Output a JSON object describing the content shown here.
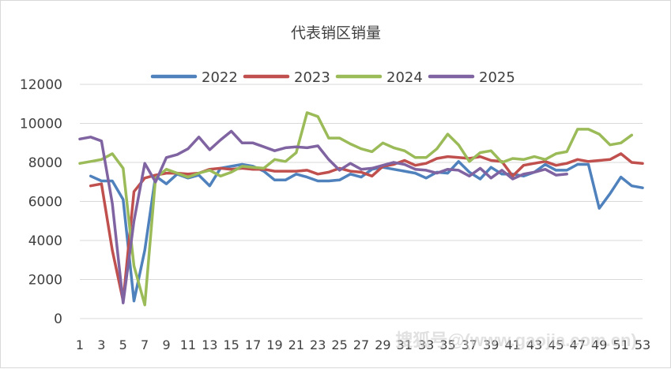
{
  "chart_data": {
    "type": "line",
    "title": "代表销区销量",
    "xlabel": "",
    "ylabel": "",
    "ylim": [
      0,
      12000
    ],
    "yticks": [
      0,
      2000,
      4000,
      6000,
      8000,
      10000,
      12000
    ],
    "xticks": [
      1,
      3,
      5,
      7,
      9,
      11,
      13,
      15,
      17,
      19,
      21,
      23,
      25,
      27,
      29,
      31,
      33,
      35,
      37,
      39,
      41,
      43,
      45,
      47,
      49,
      51,
      53
    ],
    "x": [
      1,
      2,
      3,
      4,
      5,
      6,
      7,
      8,
      9,
      10,
      11,
      12,
      13,
      14,
      15,
      16,
      17,
      18,
      19,
      20,
      21,
      22,
      23,
      24,
      25,
      26,
      27,
      28,
      29,
      30,
      31,
      32,
      33,
      34,
      35,
      36,
      37,
      38,
      39,
      40,
      41,
      42,
      43,
      44,
      45,
      46,
      47,
      48,
      49,
      50,
      51,
      52,
      53
    ],
    "grid": true,
    "legend_position": "top",
    "series": [
      {
        "name": "2022",
        "color": "#4f81bd",
        "values": [
          null,
          7300,
          7050,
          7050,
          6100,
          900,
          3500,
          7300,
          6900,
          7400,
          7200,
          7350,
          6800,
          7700,
          7800,
          7900,
          7800,
          7550,
          7100,
          7100,
          7400,
          7250,
          7050,
          7050,
          7100,
          7400,
          7250,
          7650,
          7750,
          7650,
          7550,
          7450,
          7200,
          7500,
          7450,
          8050,
          7500,
          7150,
          7750,
          7400,
          7400,
          7300,
          7500,
          7900,
          7600,
          7600,
          7900,
          7900,
          5650,
          6400,
          7250,
          6800,
          6700
        ]
      },
      {
        "name": "2023",
        "color": "#c0504d",
        "values": [
          null,
          6800,
          6900,
          3500,
          900,
          6500,
          7200,
          7350,
          7450,
          7450,
          7400,
          7450,
          7650,
          7700,
          7650,
          7700,
          7650,
          7650,
          7550,
          7550,
          7550,
          7600,
          7400,
          7500,
          7700,
          7550,
          7500,
          7300,
          7800,
          7900,
          8100,
          7850,
          7950,
          8200,
          8300,
          8250,
          8200,
          8300,
          8100,
          8050,
          7300,
          7850,
          7950,
          8050,
          7850,
          7950,
          8150,
          8050,
          8100,
          8150,
          8450,
          8000,
          7950
        ]
      },
      {
        "name": "2024",
        "color": "#9bbb59",
        "values": [
          7950,
          8050,
          8150,
          8450,
          7700,
          2700,
          700,
          7200,
          7650,
          7450,
          7250,
          7450,
          7600,
          7300,
          7500,
          7800,
          7750,
          7700,
          8150,
          8050,
          8500,
          10550,
          10350,
          9250,
          9250,
          8950,
          8700,
          8550,
          9000,
          8750,
          8600,
          8250,
          8250,
          8700,
          9450,
          8900,
          8050,
          8500,
          8600,
          8000,
          8200,
          8150,
          8300,
          8150,
          8450,
          8550,
          9700,
          9700,
          9450,
          8900,
          9000,
          9400,
          null
        ]
      },
      {
        "name": "2025",
        "color": "#8064a2",
        "values": [
          9200,
          9300,
          9100,
          5900,
          800,
          5000,
          7950,
          7000,
          8250,
          8400,
          8700,
          9300,
          8650,
          9150,
          9600,
          9000,
          9000,
          8800,
          8600,
          8750,
          8800,
          8750,
          8850,
          8150,
          7600,
          7950,
          7650,
          7700,
          7850,
          8000,
          7900,
          7650,
          7600,
          7450,
          7650,
          7600,
          7300,
          7700,
          7200,
          7600,
          7150,
          7400,
          7500,
          7650,
          7350,
          7400,
          null,
          null,
          null,
          null,
          null,
          null,
          null
        ]
      }
    ]
  },
  "watermark": "搜狐号@(www.gaojia.com.cn)"
}
